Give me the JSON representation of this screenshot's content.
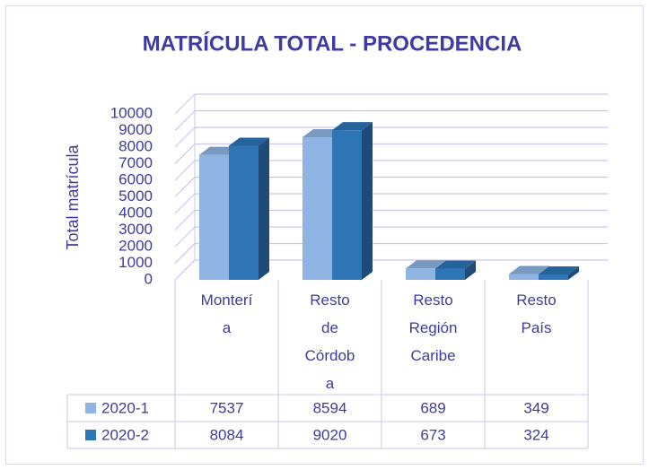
{
  "chart_data": {
    "type": "bar3d",
    "title": "MATRÍCULA TOTAL - PROCEDENCIA",
    "y_label": "Total matrícula",
    "categories": [
      "Montería",
      "Resto de Córdoba",
      "Resto Región Caribe",
      "Resto País"
    ],
    "series": [
      {
        "name": "2020-1",
        "color": "#8eb4e3",
        "values": [
          7537,
          8594,
          689,
          349
        ]
      },
      {
        "name": "2020-2",
        "color": "#2e75b6",
        "values": [
          8084,
          9020,
          673,
          324
        ]
      }
    ],
    "ylim": [
      0,
      10000
    ],
    "yticks": [
      0,
      1000,
      2000,
      3000,
      4000,
      5000,
      6000,
      7000,
      8000,
      9000,
      10000
    ],
    "grid": true,
    "data_table": true
  }
}
